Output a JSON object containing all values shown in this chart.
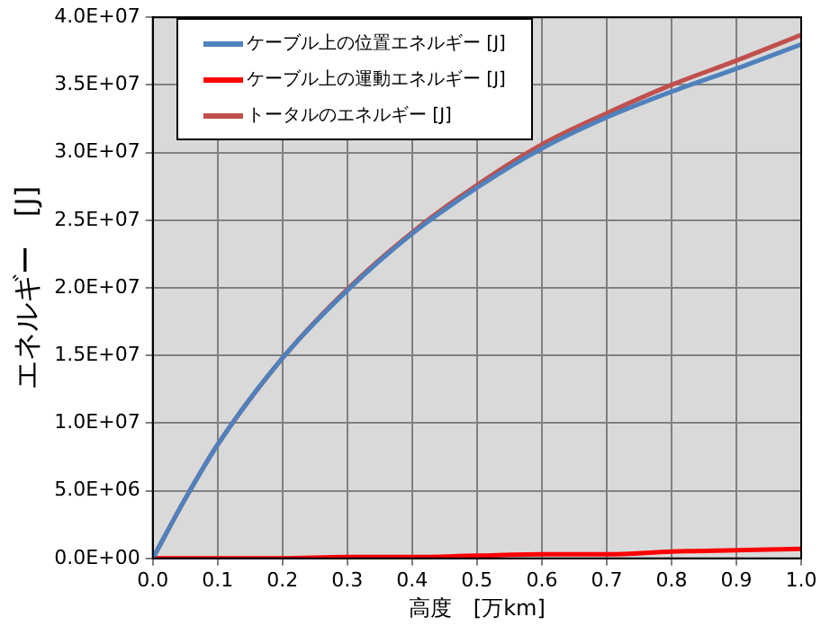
{
  "chart_data": {
    "type": "line",
    "xlabel": "高度　[万km]",
    "ylabel": "エネルギー　[J]",
    "x": [
      0,
      0.05,
      0.1,
      0.2,
      0.3,
      0.4,
      0.5,
      0.6,
      0.7,
      0.8,
      0.9,
      1.0
    ],
    "series": [
      {
        "name": "ケーブル上の位置エネルギー [J]",
        "color": "#4f81bd",
        "values": [
          0,
          4400000,
          8400000,
          14800000,
          19800000,
          24000000,
          27400000,
          30300000,
          32600000,
          34500000,
          36200000,
          38000000
        ]
      },
      {
        "name": "ケーブル上の運動エネルギー [J]",
        "color": "#ff0000",
        "values": [
          0,
          0,
          0,
          0,
          100000,
          100000,
          200000,
          300000,
          300000,
          500000,
          600000,
          700000
        ]
      },
      {
        "name": "トータルのエネルギー [J]",
        "color": "#c0504d",
        "values": [
          0,
          4400000,
          8400000,
          14800000,
          19900000,
          24100000,
          27600000,
          30600000,
          32900000,
          35000000,
          36800000,
          38700000
        ]
      }
    ],
    "xlim": [
      0,
      1.0
    ],
    "xticks": [
      {
        "value": 0,
        "label": "0.0"
      },
      0.1,
      0.2,
      0.3,
      0.4,
      0.5,
      0.6,
      0.7,
      0.8,
      0.9,
      {
        "value": 1,
        "label": "1.0"
      }
    ],
    "ylim": [
      0,
      40000000
    ],
    "yticks": [
      {
        "value": 0,
        "label": "0.0E+00"
      },
      {
        "value": 5000000,
        "label": "5.0E+06"
      },
      {
        "value": 10000000,
        "label": "1.0E+07"
      },
      {
        "value": 15000000,
        "label": "1.5E+07"
      },
      {
        "value": 20000000,
        "label": "2.0E+07"
      },
      {
        "value": 25000000,
        "label": "2.5E+07"
      },
      {
        "value": 30000000,
        "label": "3.0E+07"
      },
      {
        "value": 35000000,
        "label": "3.5E+07"
      },
      {
        "value": 40000000,
        "label": "4.0E+07"
      }
    ],
    "grid": true,
    "legend": "top left",
    "marker": "none",
    "line_style": "solid"
  }
}
